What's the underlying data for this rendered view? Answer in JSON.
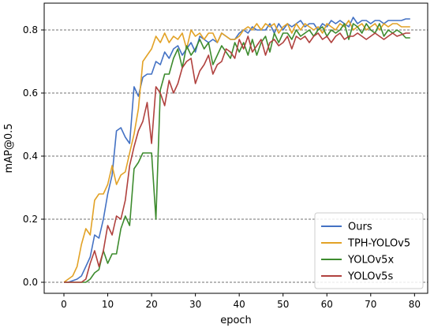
{
  "chart_data": {
    "type": "line",
    "title": "",
    "xlabel": "epoch",
    "ylabel": "mAP@0.5",
    "xlim": [
      -4.5,
      83
    ],
    "ylim": [
      -0.035,
      0.885
    ],
    "xticks": [
      0,
      10,
      20,
      30,
      40,
      50,
      60,
      70,
      80
    ],
    "yticks": [
      0.0,
      0.2,
      0.4,
      0.6,
      0.8
    ],
    "ytick_labels": [
      "0.0",
      "0.2",
      "0.4",
      "0.6",
      "0.8"
    ],
    "grid": "horizontal dashed",
    "legend_position": "lower right",
    "x": [
      0,
      1,
      2,
      3,
      4,
      5,
      6,
      7,
      8,
      9,
      10,
      11,
      12,
      13,
      14,
      15,
      16,
      17,
      18,
      19,
      20,
      21,
      22,
      23,
      24,
      25,
      26,
      27,
      28,
      29,
      30,
      31,
      32,
      33,
      34,
      35,
      36,
      37,
      38,
      39,
      40,
      41,
      42,
      43,
      44,
      45,
      46,
      47,
      48,
      49,
      50,
      51,
      52,
      53,
      54,
      55,
      56,
      57,
      58,
      59,
      60,
      61,
      62,
      63,
      64,
      65,
      66,
      67,
      68,
      69,
      70,
      71,
      72,
      73,
      74,
      75,
      76,
      77,
      78,
      79
    ],
    "series": [
      {
        "name": "Ours",
        "color": "#4472c4",
        "values": [
          0.0,
          0.0,
          0.005,
          0.01,
          0.02,
          0.05,
          0.08,
          0.15,
          0.14,
          0.2,
          0.28,
          0.34,
          0.48,
          0.49,
          0.46,
          0.44,
          0.62,
          0.59,
          0.65,
          0.66,
          0.66,
          0.7,
          0.69,
          0.73,
          0.71,
          0.74,
          0.75,
          0.72,
          0.74,
          0.76,
          0.73,
          0.78,
          0.77,
          0.76,
          0.77,
          0.76,
          0.79,
          0.78,
          0.77,
          0.77,
          0.79,
          0.8,
          0.79,
          0.81,
          0.8,
          0.8,
          0.8,
          0.82,
          0.79,
          0.82,
          0.8,
          0.82,
          0.81,
          0.82,
          0.83,
          0.81,
          0.82,
          0.82,
          0.8,
          0.82,
          0.81,
          0.83,
          0.82,
          0.83,
          0.82,
          0.81,
          0.84,
          0.82,
          0.83,
          0.83,
          0.82,
          0.83,
          0.83,
          0.82,
          0.83,
          0.83,
          0.83,
          0.83,
          0.835,
          0.835
        ]
      },
      {
        "name": "TPH-YOLOv5",
        "color": "#e2a226",
        "values": [
          0.0,
          0.01,
          0.02,
          0.05,
          0.12,
          0.17,
          0.15,
          0.26,
          0.28,
          0.28,
          0.31,
          0.37,
          0.31,
          0.34,
          0.35,
          0.41,
          0.47,
          0.55,
          0.7,
          0.72,
          0.74,
          0.78,
          0.76,
          0.79,
          0.76,
          0.78,
          0.77,
          0.79,
          0.74,
          0.8,
          0.78,
          0.79,
          0.77,
          0.79,
          0.79,
          0.76,
          0.79,
          0.78,
          0.77,
          0.77,
          0.78,
          0.8,
          0.81,
          0.8,
          0.82,
          0.8,
          0.82,
          0.81,
          0.82,
          0.79,
          0.81,
          0.82,
          0.79,
          0.82,
          0.8,
          0.82,
          0.81,
          0.8,
          0.81,
          0.79,
          0.82,
          0.81,
          0.8,
          0.82,
          0.81,
          0.83,
          0.8,
          0.81,
          0.82,
          0.8,
          0.81,
          0.82,
          0.8,
          0.82,
          0.81,
          0.82,
          0.82,
          0.81,
          0.81,
          0.81
        ]
      },
      {
        "name": "YOLOv5x",
        "color": "#3d8b2e",
        "values": [
          0.0,
          0.0,
          0.0,
          0.0,
          0.0,
          0.0,
          0.01,
          0.03,
          0.04,
          0.1,
          0.06,
          0.09,
          0.09,
          0.17,
          0.21,
          0.18,
          0.36,
          0.38,
          0.41,
          0.41,
          0.41,
          0.2,
          0.61,
          0.66,
          0.66,
          0.71,
          0.74,
          0.68,
          0.75,
          0.72,
          0.74,
          0.77,
          0.74,
          0.76,
          0.69,
          0.72,
          0.75,
          0.73,
          0.71,
          0.76,
          0.73,
          0.76,
          0.72,
          0.77,
          0.72,
          0.76,
          0.78,
          0.73,
          0.79,
          0.76,
          0.79,
          0.79,
          0.77,
          0.8,
          0.78,
          0.79,
          0.8,
          0.78,
          0.8,
          0.81,
          0.78,
          0.8,
          0.79,
          0.8,
          0.82,
          0.77,
          0.82,
          0.81,
          0.79,
          0.82,
          0.8,
          0.79,
          0.82,
          0.78,
          0.8,
          0.79,
          0.8,
          0.79,
          0.775,
          0.775
        ]
      },
      {
        "name": "YOLOv5s",
        "color": "#b0413e",
        "values": [
          0.0,
          0.0,
          0.0,
          0.0,
          0.0,
          0.01,
          0.06,
          0.1,
          0.05,
          0.1,
          0.18,
          0.15,
          0.21,
          0.2,
          0.26,
          0.37,
          0.43,
          0.48,
          0.51,
          0.57,
          0.44,
          0.62,
          0.6,
          0.56,
          0.64,
          0.6,
          0.63,
          0.68,
          0.7,
          0.71,
          0.63,
          0.67,
          0.69,
          0.72,
          0.66,
          0.69,
          0.7,
          0.74,
          0.73,
          0.71,
          0.77,
          0.74,
          0.78,
          0.73,
          0.75,
          0.77,
          0.72,
          0.76,
          0.77,
          0.75,
          0.76,
          0.78,
          0.74,
          0.78,
          0.77,
          0.78,
          0.76,
          0.78,
          0.79,
          0.77,
          0.78,
          0.76,
          0.78,
          0.79,
          0.77,
          0.78,
          0.78,
          0.79,
          0.78,
          0.77,
          0.78,
          0.79,
          0.78,
          0.77,
          0.78,
          0.79,
          0.78,
          0.785,
          0.79,
          0.79
        ]
      }
    ]
  }
}
